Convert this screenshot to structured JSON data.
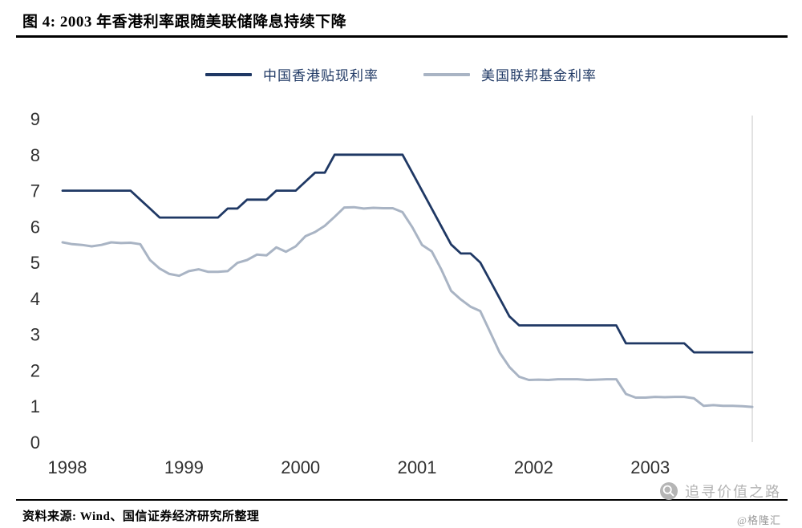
{
  "header": {
    "title": "图 4: 2003 年香港利率跟随美联储降息持续下降"
  },
  "footer": {
    "source": "资料来源: Wind、国信证券经济研究所整理",
    "watermark": "追寻价值之路",
    "watermark_handle": "@格隆汇"
  },
  "chart_data": {
    "type": "line",
    "title": "2003 年香港利率跟随美联储降息持续下降",
    "x_unit": "month",
    "x_start": 1998,
    "x_ticks": [
      1998,
      1999,
      2000,
      2001,
      2002,
      2003
    ],
    "y_ticks": [
      9,
      8,
      7,
      6,
      5,
      4,
      3,
      2,
      1,
      0
    ],
    "ylim": [
      0,
      9
    ],
    "grid": false,
    "legend_position": "top-center",
    "right_border_color": "#d9d9d9",
    "tick_color": "#303030",
    "series": [
      {
        "name": "中国香港贴现利率",
        "color": "#1f3864",
        "width": 2.8,
        "values": [
          7.0,
          7.0,
          7.0,
          7.0,
          7.0,
          7.0,
          7.0,
          7.0,
          6.75,
          6.5,
          6.25,
          6.25,
          6.25,
          6.25,
          6.25,
          6.25,
          6.25,
          6.5,
          6.5,
          6.75,
          6.75,
          6.75,
          7.0,
          7.0,
          7.0,
          7.25,
          7.5,
          7.5,
          8.0,
          8.0,
          8.0,
          8.0,
          8.0,
          8.0,
          8.0,
          8.0,
          7.5,
          7.0,
          6.5,
          6.0,
          5.5,
          5.25,
          5.25,
          5.0,
          4.5,
          4.0,
          3.5,
          3.25,
          3.25,
          3.25,
          3.25,
          3.25,
          3.25,
          3.25,
          3.25,
          3.25,
          3.25,
          3.25,
          2.75,
          2.75,
          2.75,
          2.75,
          2.75,
          2.75,
          2.75,
          2.5,
          2.5,
          2.5,
          2.5,
          2.5,
          2.5,
          2.5
        ]
      },
      {
        "name": "美国联邦基金利率",
        "color": "#a9b4c4",
        "width": 3.0,
        "values": [
          5.56,
          5.51,
          5.49,
          5.45,
          5.49,
          5.56,
          5.54,
          5.55,
          5.51,
          5.07,
          4.83,
          4.68,
          4.63,
          4.76,
          4.81,
          4.74,
          4.74,
          4.76,
          4.99,
          5.07,
          5.22,
          5.2,
          5.42,
          5.3,
          5.45,
          5.73,
          5.85,
          6.02,
          6.27,
          6.53,
          6.54,
          6.5,
          6.52,
          6.51,
          6.51,
          6.4,
          5.98,
          5.49,
          5.31,
          4.8,
          4.21,
          3.97,
          3.77,
          3.65,
          3.07,
          2.49,
          2.09,
          1.82,
          1.73,
          1.74,
          1.73,
          1.75,
          1.75,
          1.75,
          1.73,
          1.74,
          1.75,
          1.75,
          1.34,
          1.24,
          1.24,
          1.26,
          1.25,
          1.26,
          1.26,
          1.22,
          1.01,
          1.03,
          1.01,
          1.01,
          1.0,
          0.98
        ]
      }
    ]
  }
}
